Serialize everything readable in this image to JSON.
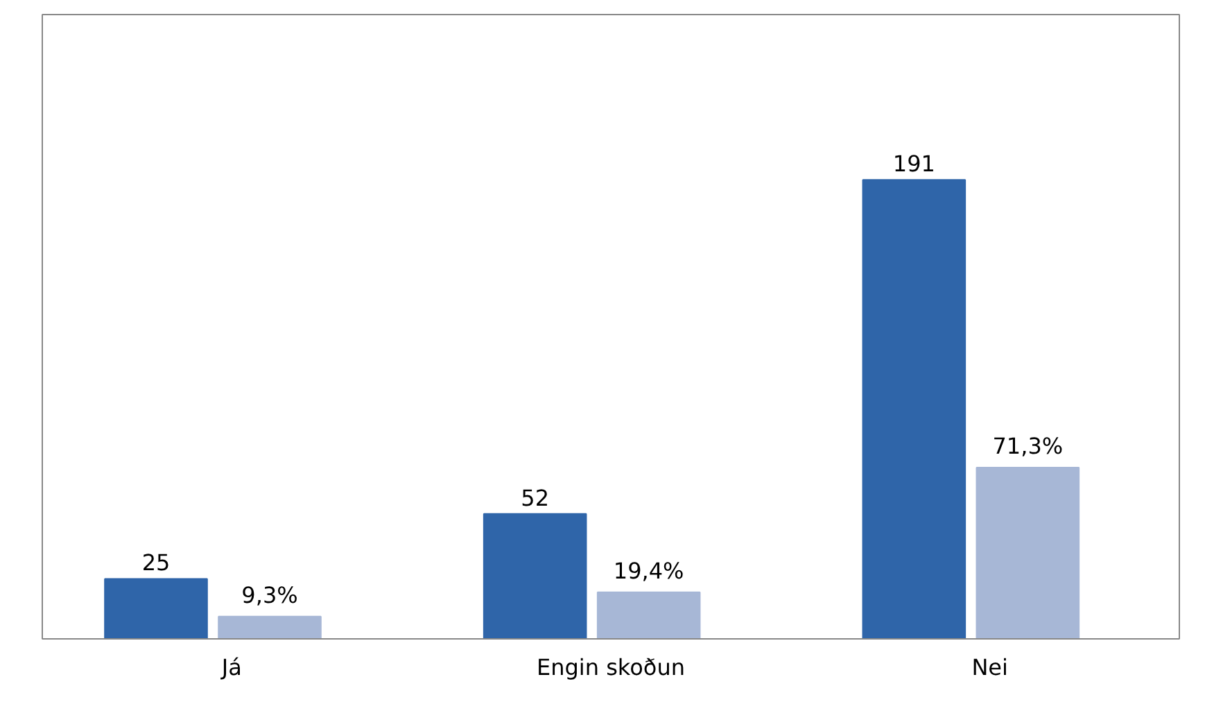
{
  "chart_data": {
    "type": "bar",
    "categories": [
      "Já",
      "Engin skoðun",
      "Nei"
    ],
    "series": [
      {
        "color": "#2f65a9",
        "values": [
          25,
          52,
          191
        ],
        "value_labels": [
          "25",
          "52",
          "191"
        ]
      },
      {
        "color": "#a7b7d6",
        "values": [
          9.3,
          19.4,
          71.3
        ],
        "value_labels": [
          "9,3%",
          "19,4%",
          "71,3%"
        ]
      }
    ],
    "data_labels": true,
    "grid": false
  }
}
